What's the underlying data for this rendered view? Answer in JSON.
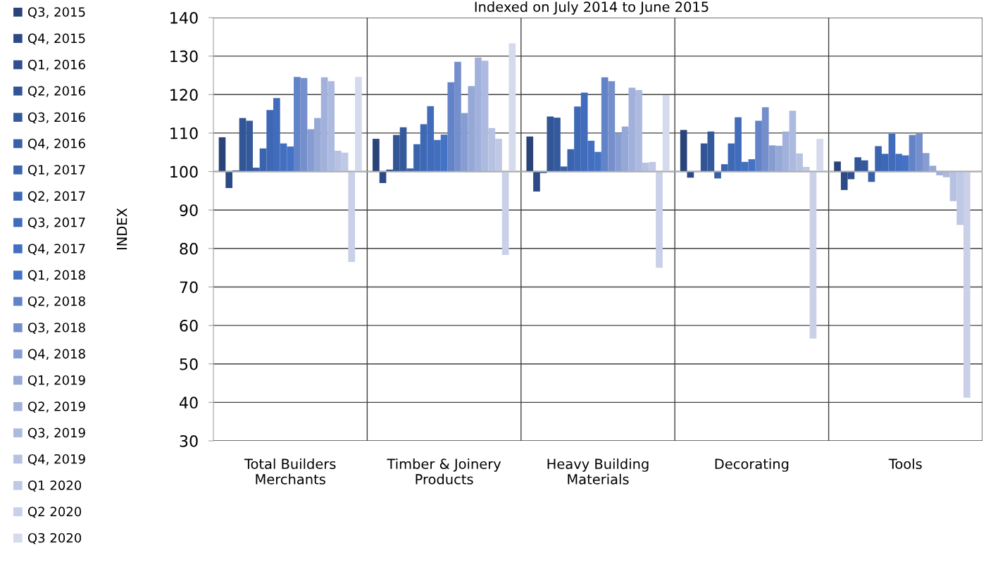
{
  "chart_data": {
    "type": "bar",
    "title": "Indexed on July 2014 to June 2015",
    "ylabel": "INDEX",
    "categories": [
      "Total Builders\nMerchants",
      "Timber & Joinery\nProducts",
      "Heavy Building\nMaterials",
      "Decorating",
      "Tools"
    ],
    "ylim": [
      30,
      140
    ],
    "yticks": [
      30,
      40,
      50,
      60,
      70,
      80,
      90,
      100,
      110,
      120,
      130,
      140
    ],
    "grid": true,
    "legend": "left",
    "ref_lines": [
      {
        "axis": "y",
        "value": 100,
        "color": "#b0b0b0"
      }
    ],
    "series": [
      {
        "name": "Q3, 2015",
        "color": "#2a4479",
        "base": [
          100,
          100,
          100,
          100,
          100
        ],
        "values": [
          8.9,
          8.5,
          9.1,
          10.8,
          2.6
        ]
      },
      {
        "name": "Q4, 2015",
        "color": "#2c4a85",
        "base": [
          100,
          100,
          100,
          100,
          100
        ],
        "values": [
          -4.3,
          -3.0,
          -5.2,
          -1.6,
          -4.8
        ]
      },
      {
        "name": "Q1, 2016",
        "color": "#2f4f8e",
        "base": [
          100,
          100,
          100,
          null,
          100
        ],
        "values": [
          0.3,
          0.5,
          -0.4,
          null,
          -2.0
        ]
      },
      {
        "name": "Q2, 2016",
        "color": "#315595",
        "base": [
          100,
          100,
          100,
          100,
          100
        ],
        "values": [
          13.9,
          9.5,
          14.3,
          7.3,
          3.7
        ]
      },
      {
        "name": "Q3, 2016",
        "color": "#345a9d",
        "base": [
          100,
          100,
          100,
          100,
          100
        ],
        "values": [
          13.2,
          11.5,
          14.0,
          10.4,
          2.9
        ]
      },
      {
        "name": "Q4, 2016",
        "color": "#3760a6",
        "base": [
          100,
          100,
          100,
          100,
          100
        ],
        "values": [
          1.0,
          0.8,
          1.3,
          -1.8,
          -2.7
        ]
      },
      {
        "name": "Q1, 2017",
        "color": "#3a64ae",
        "base": [
          100,
          100,
          100,
          100,
          100
        ],
        "values": [
          6.0,
          7.1,
          5.8,
          1.9,
          6.6
        ]
      },
      {
        "name": "Q2, 2017",
        "color": "#3d68b5",
        "base": [
          100,
          100,
          100,
          100,
          100
        ],
        "values": [
          16.0,
          12.3,
          16.9,
          7.3,
          4.6
        ]
      },
      {
        "name": "Q3, 2017",
        "color": "#406cbb",
        "base": [
          100,
          100,
          100,
          100,
          100
        ],
        "values": [
          19.1,
          17.0,
          20.5,
          14.1,
          9.8
        ]
      },
      {
        "name": "Q4, 2017",
        "color": "#426fc0",
        "base": [
          100,
          100,
          100,
          100,
          100
        ],
        "values": [
          7.3,
          8.2,
          8.0,
          2.5,
          4.6
        ]
      },
      {
        "name": "Q1, 2018",
        "color": "#4472c4",
        "base": [
          100,
          100,
          100,
          100,
          100
        ],
        "values": [
          6.5,
          9.6,
          5.1,
          3.2,
          4.2
        ]
      },
      {
        "name": "Q2, 2018",
        "color": "#6283c8",
        "base": [
          100,
          100,
          100,
          100,
          100
        ],
        "values": [
          24.6,
          23.2,
          24.5,
          13.2,
          9.5
        ]
      },
      {
        "name": "Q3, 2018",
        "color": "#758fcc",
        "base": [
          100,
          100,
          100,
          100,
          100
        ],
        "values": [
          24.3,
          28.5,
          23.5,
          16.7,
          9.9
        ]
      },
      {
        "name": "Q4, 2018",
        "color": "#879dd2",
        "base": [
          100,
          100,
          100,
          100,
          100
        ],
        "values": [
          11.0,
          15.2,
          10.0,
          6.8,
          4.8
        ]
      },
      {
        "name": "Q1, 2019",
        "color": "#95a8d6",
        "base": [
          100,
          100,
          100,
          100,
          100
        ],
        "values": [
          13.9,
          22.2,
          11.7,
          6.7,
          1.5
        ]
      },
      {
        "name": "Q2, 2019",
        "color": "#a2b1db",
        "base": [
          100,
          100,
          100,
          100,
          100
        ],
        "values": [
          24.5,
          29.6,
          21.8,
          10.4,
          -1.0
        ]
      },
      {
        "name": "Q3, 2019",
        "color": "#adbadf",
        "base": [
          100,
          100,
          100,
          100,
          100
        ],
        "values": [
          23.5,
          28.8,
          21.2,
          15.8,
          -1.5
        ]
      },
      {
        "name": "Q4, 2019",
        "color": "#b7c2e2",
        "base": [
          100,
          100,
          100,
          100,
          100
        ],
        "values": [
          5.4,
          11.3,
          2.3,
          4.7,
          -7.7
        ]
      },
      {
        "name": "Q1 2020",
        "color": "#bfc8e5",
        "base": [
          100,
          100,
          100,
          100,
          100
        ],
        "values": [
          4.9,
          8.5,
          2.5,
          1.2,
          -13.9
        ]
      },
      {
        "name": "Q2 2020",
        "color": "#c9d0e8",
        "base": [
          100,
          100,
          100,
          100,
          100
        ],
        "values": [
          -23.5,
          -21.7,
          -25.0,
          -43.4,
          -58.8
        ]
      },
      {
        "name": "Q3 2020",
        "color": "#d5daed",
        "base": [
          100,
          100,
          100,
          100,
          null
        ],
        "values": [
          24.6,
          33.3,
          19.8,
          8.5,
          null
        ]
      }
    ]
  }
}
